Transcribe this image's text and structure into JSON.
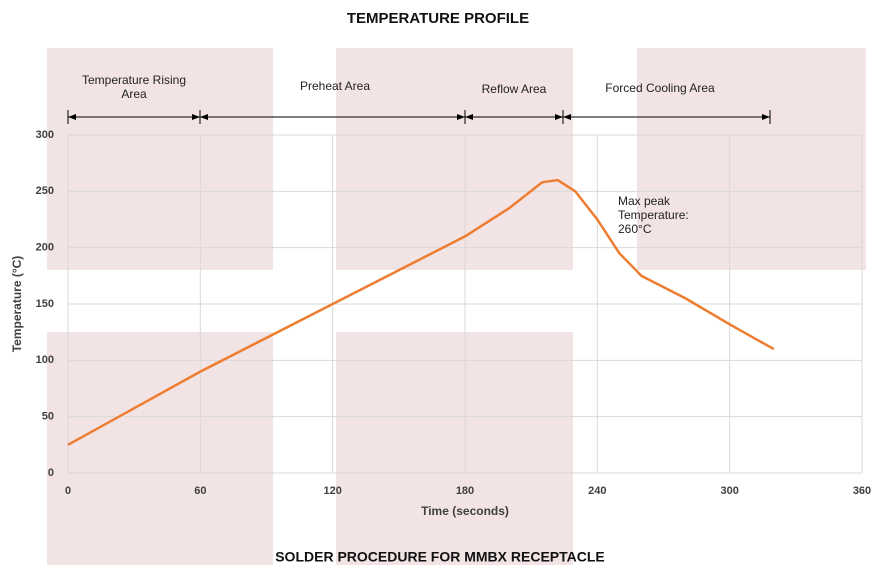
{
  "chart_data": {
    "type": "line",
    "title": "TEMPERATURE PROFILE",
    "caption": "SOLDER PROCEDURE FOR MMBX RECEPTACLE",
    "x_label": "Time (seconds)",
    "y_label": "Temperature (°C)",
    "x": [
      0,
      60,
      120,
      180,
      200,
      215,
      222,
      230,
      240,
      250,
      260,
      280,
      300,
      320
    ],
    "series": [
      {
        "name": "Temperature",
        "color": "#ed7d31",
        "values": [
          25,
          90,
          150,
          210,
          235,
          258,
          260,
          250,
          225,
          195,
          175,
          155,
          132,
          110
        ]
      }
    ],
    "xlim": [
      0,
      360
    ],
    "xticks": [
      0,
      60,
      120,
      180,
      240,
      300,
      360
    ],
    "ylim": [
      0,
      300
    ],
    "yticks": [
      0,
      50,
      100,
      150,
      200,
      250,
      300
    ],
    "grid": true,
    "annotations": [
      "Temperature Rising Area",
      "Preheat Area",
      "Reflow Area",
      "Forced Cooling Area",
      "Max peak Temperature: 260°C"
    ]
  }
}
